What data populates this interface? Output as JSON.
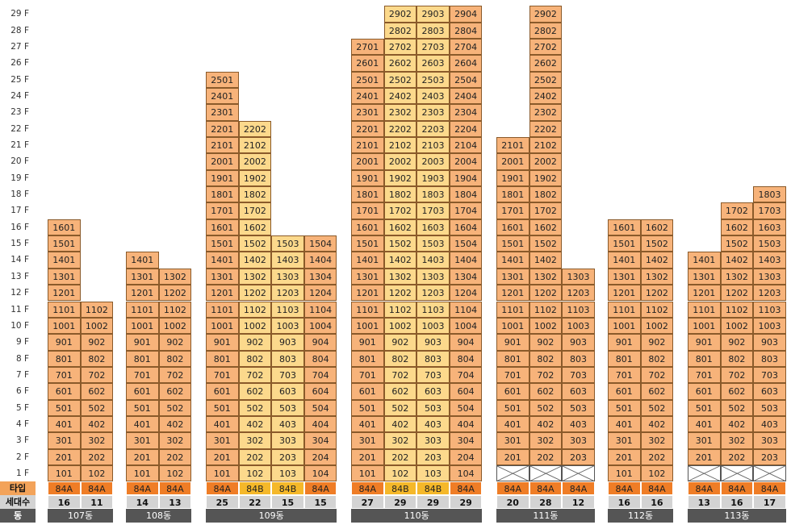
{
  "floor_labels": [
    "1 F",
    "2 F",
    "3 F",
    "4 F",
    "5 F",
    "6 F",
    "7 F",
    "8 F",
    "9 F",
    "10 F",
    "11 F",
    "12 F",
    "13 F",
    "14 F",
    "15 F",
    "16 F",
    "17 F",
    "18 F",
    "19 F",
    "20 F",
    "21 F",
    "22 F",
    "23 F",
    "24 F",
    "25 F",
    "26 F",
    "27 F",
    "28 F",
    "29 F"
  ],
  "row_labels": {
    "type": "타입",
    "count": "세대수",
    "building": "동"
  },
  "colors": {
    "unit_orange": "#f7b37a",
    "unit_yellow": "#fcd98c",
    "type_84A": "#ef7d26",
    "type_84B": "#f5b82a",
    "count_bg": "#d3d3d3",
    "building_bg": "#555555"
  },
  "buildings": [
    {
      "name": "107동",
      "lines": [
        {
          "line": 1,
          "type": "84A",
          "count": "16",
          "min_floor": 1,
          "max_floor": 16,
          "tone": "orange"
        },
        {
          "line": 2,
          "type": "84A",
          "count": "11",
          "min_floor": 1,
          "max_floor": 11,
          "tone": "orange"
        }
      ]
    },
    {
      "name": "108동",
      "lines": [
        {
          "line": 1,
          "type": "84A",
          "count": "14",
          "min_floor": 1,
          "max_floor": 14,
          "tone": "orange"
        },
        {
          "line": 2,
          "type": "84A",
          "count": "13",
          "min_floor": 1,
          "max_floor": 13,
          "tone": "orange"
        }
      ]
    },
    {
      "name": "109동",
      "lines": [
        {
          "line": 1,
          "type": "84A",
          "count": "25",
          "min_floor": 1,
          "max_floor": 25,
          "tone": "orange"
        },
        {
          "line": 2,
          "type": "84B",
          "count": "22",
          "min_floor": 1,
          "max_floor": 22,
          "tone": "yellow"
        },
        {
          "line": 3,
          "type": "84B",
          "count": "15",
          "min_floor": 1,
          "max_floor": 15,
          "tone": "yellow"
        },
        {
          "line": 4,
          "type": "84A",
          "count": "15",
          "min_floor": 1,
          "max_floor": 15,
          "tone": "orange"
        }
      ]
    },
    {
      "name": "110동",
      "lines": [
        {
          "line": 1,
          "type": "84A",
          "count": "27",
          "min_floor": 1,
          "max_floor": 27,
          "tone": "orange"
        },
        {
          "line": 2,
          "type": "84B",
          "count": "29",
          "min_floor": 1,
          "max_floor": 29,
          "tone": "yellow"
        },
        {
          "line": 3,
          "type": "84B",
          "count": "29",
          "min_floor": 1,
          "max_floor": 29,
          "tone": "yellow"
        },
        {
          "line": 4,
          "type": "84A",
          "count": "29",
          "min_floor": 1,
          "max_floor": 29,
          "tone": "orange"
        }
      ]
    },
    {
      "name": "111동",
      "lines": [
        {
          "line": 1,
          "type": "84A",
          "count": "20",
          "min_floor": 2,
          "max_floor": 21,
          "tone": "orange"
        },
        {
          "line": 2,
          "type": "84A",
          "count": "28",
          "min_floor": 2,
          "max_floor": 29,
          "tone": "orange"
        },
        {
          "line": 3,
          "type": "84A",
          "count": "12",
          "min_floor": 2,
          "max_floor": 13,
          "tone": "orange"
        }
      ]
    },
    {
      "name": "112동",
      "lines": [
        {
          "line": 1,
          "type": "84A",
          "count": "16",
          "min_floor": 1,
          "max_floor": 16,
          "tone": "orange"
        },
        {
          "line": 2,
          "type": "84A",
          "count": "16",
          "min_floor": 1,
          "max_floor": 16,
          "tone": "orange"
        }
      ]
    },
    {
      "name": "113동",
      "lines": [
        {
          "line": 1,
          "type": "84A",
          "count": "13",
          "min_floor": 2,
          "max_floor": 14,
          "tone": "orange"
        },
        {
          "line": 2,
          "type": "84A",
          "count": "16",
          "min_floor": 2,
          "max_floor": 17,
          "tone": "orange"
        },
        {
          "line": 3,
          "type": "84A",
          "count": "17",
          "min_floor": 2,
          "max_floor": 18,
          "tone": "orange"
        }
      ]
    }
  ]
}
